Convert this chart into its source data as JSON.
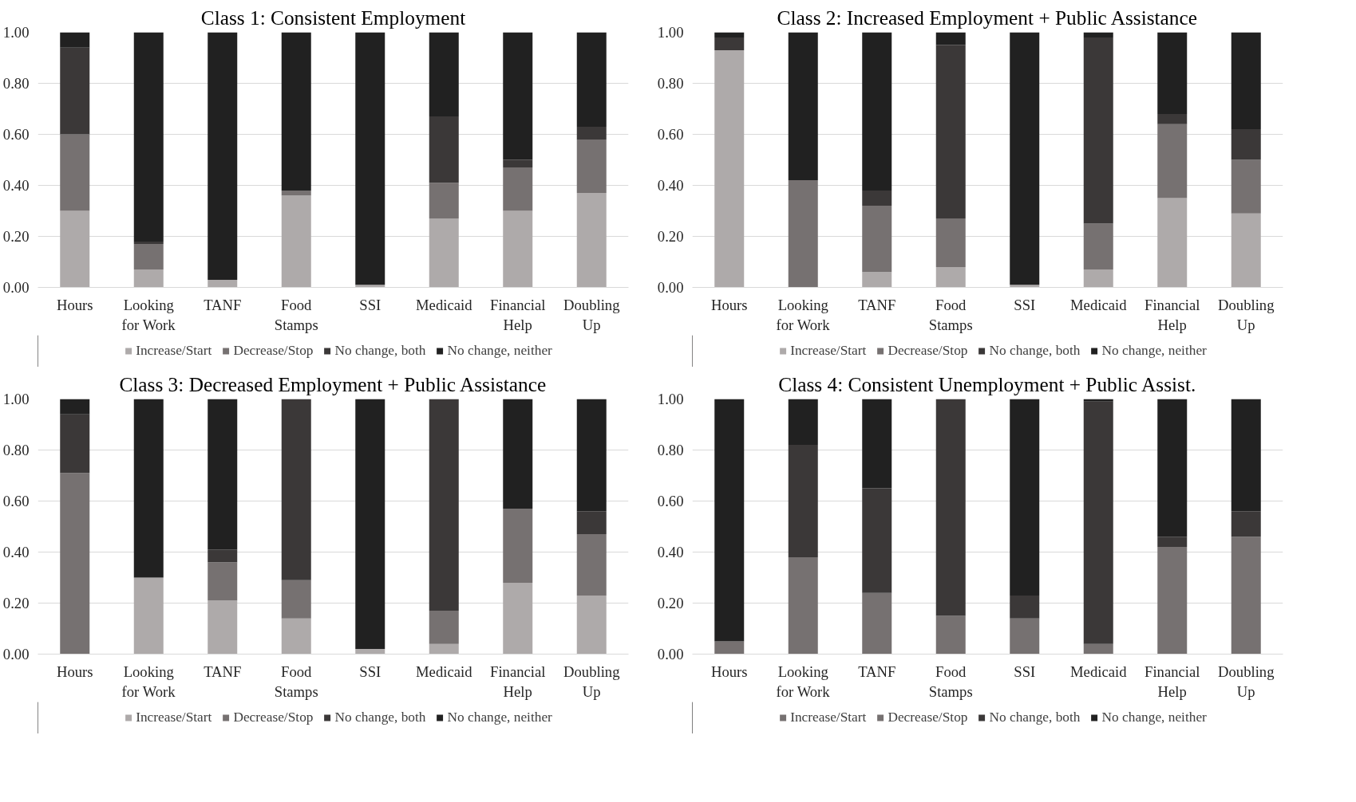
{
  "chart_data": [
    {
      "type": "bar",
      "stacked": true,
      "title": "Class 1: Consistent Employment",
      "categories": [
        "Hours",
        "Looking for Work",
        "TANF",
        "Food Stamps",
        "SSI",
        "Medicaid",
        "Financial Help",
        "Doubling Up"
      ],
      "ylim": [
        0,
        1
      ],
      "yticks": [
        {
          "value": 0,
          "label": "0.00"
        },
        {
          "value": 0.2,
          "label": "0.20"
        },
        {
          "value": 0.4,
          "label": "0.40"
        },
        {
          "value": 0.6,
          "label": "0.60"
        },
        {
          "value": 0.8,
          "label": "0.80"
        },
        {
          "value": 1,
          "label": "1.00"
        }
      ],
      "grid": "y",
      "legend": "bottom",
      "series": [
        {
          "name": "Increase/Start",
          "color": "#aeaaaa",
          "values": [
            0.3,
            0.07,
            0.03,
            0.36,
            0.01,
            0.27,
            0.3,
            0.37
          ]
        },
        {
          "name": "Decrease/Stop",
          "color": "#767171",
          "values": [
            0.3,
            0.1,
            0,
            0.02,
            0,
            0.14,
            0.17,
            0.21
          ]
        },
        {
          "name": "No change, both",
          "color": "#3b3838",
          "values": [
            0.34,
            0.01,
            0,
            0,
            0,
            0.26,
            0.03,
            0.05
          ]
        },
        {
          "name": "No change, neither",
          "color": "#212121",
          "values": [
            0.06,
            0.82,
            0.97,
            0.62,
            0.99,
            0.33,
            0.5,
            0.37
          ]
        }
      ]
    },
    {
      "type": "bar",
      "stacked": true,
      "title": "Class 2: Increased Employment + Public Assistance",
      "categories": [
        "Hours",
        "Looking for Work",
        "TANF",
        "Food Stamps",
        "SSI",
        "Medicaid",
        "Financial Help",
        "Doubling Up"
      ],
      "ylim": [
        0,
        1
      ],
      "yticks": [
        {
          "value": 0,
          "label": "0.00"
        },
        {
          "value": 0.2,
          "label": "0.20"
        },
        {
          "value": 0.4,
          "label": "0.40"
        },
        {
          "value": 0.6,
          "label": "0.60"
        },
        {
          "value": 0.8,
          "label": "0.80"
        },
        {
          "value": 1,
          "label": "1.00"
        }
      ],
      "grid": "y",
      "legend": "bottom",
      "series": [
        {
          "name": "Increase/Start",
          "color": "#aeaaaa",
          "values": [
            0.93,
            0,
            0.06,
            0.08,
            0.01,
            0.07,
            0.35,
            0.29
          ]
        },
        {
          "name": "Decrease/Stop",
          "color": "#767171",
          "values": [
            0,
            0.42,
            0.26,
            0.19,
            0,
            0.18,
            0.29,
            0.21
          ]
        },
        {
          "name": "No change, both",
          "color": "#3b3838",
          "values": [
            0.05,
            0,
            0.06,
            0.68,
            0,
            0.73,
            0.04,
            0.12
          ]
        },
        {
          "name": "No change, neither",
          "color": "#212121",
          "values": [
            0.02,
            0.58,
            0.62,
            0.05,
            0.99,
            0.02,
            0.32,
            0.38
          ]
        }
      ]
    },
    {
      "type": "bar",
      "stacked": true,
      "title": "Class 3: Decreased Employment + Public Assistance",
      "categories": [
        "Hours",
        "Looking for Work",
        "TANF",
        "Food Stamps",
        "SSI",
        "Medicaid",
        "Financial Help",
        "Doubling Up"
      ],
      "ylim": [
        0,
        1
      ],
      "yticks": [
        {
          "value": 0,
          "label": "0.00"
        },
        {
          "value": 0.2,
          "label": "0.20"
        },
        {
          "value": 0.4,
          "label": "0.40"
        },
        {
          "value": 0.6,
          "label": "0.60"
        },
        {
          "value": 0.8,
          "label": "0.80"
        },
        {
          "value": 1,
          "label": "1.00"
        }
      ],
      "grid": "y",
      "legend": "bottom",
      "series": [
        {
          "name": "Increase/Start",
          "color": "#aeaaaa",
          "values": [
            0,
            0.3,
            0.21,
            0.14,
            0.02,
            0.04,
            0.28,
            0.23
          ]
        },
        {
          "name": "Decrease/Stop",
          "color": "#767171",
          "values": [
            0.71,
            0,
            0.15,
            0.15,
            0,
            0.13,
            0.29,
            0.24
          ]
        },
        {
          "name": "No change, both",
          "color": "#3b3838",
          "values": [
            0.23,
            0,
            0.05,
            0.71,
            0,
            0.83,
            0,
            0.09
          ]
        },
        {
          "name": "No change, neither",
          "color": "#212121",
          "values": [
            0.06,
            0.7,
            0.59,
            0,
            0.98,
            0,
            0.43,
            0.44
          ]
        }
      ]
    },
    {
      "type": "bar",
      "stacked": true,
      "title": "Class 4: Consistent Unemployment + Public Assist.",
      "categories": [
        "Hours",
        "Looking for Work",
        "TANF",
        "Food Stamps",
        "SSI",
        "Medicaid",
        "Financial Help",
        "Doubling Up"
      ],
      "ylim": [
        0,
        1
      ],
      "yticks": [
        {
          "value": 0,
          "label": "0.00"
        },
        {
          "value": 0.2,
          "label": "0.20"
        },
        {
          "value": 0.4,
          "label": "0.40"
        },
        {
          "value": 0.6,
          "label": "0.60"
        },
        {
          "value": 0.8,
          "label": "0.80"
        },
        {
          "value": 1,
          "label": "1.00"
        }
      ],
      "grid": "y",
      "legend": "bottom",
      "series": [
        {
          "name": "Increase/Start",
          "color": "#767171",
          "values": [
            0,
            0,
            0,
            0,
            0,
            0,
            0,
            0
          ]
        },
        {
          "name": "Decrease/Stop",
          "color": "#767171",
          "values": [
            0.05,
            0.38,
            0.24,
            0.15,
            0.14,
            0.04,
            0.42,
            0.46
          ]
        },
        {
          "name": "No change, both",
          "color": "#3b3838",
          "values": [
            0,
            0.44,
            0.41,
            0.85,
            0.09,
            0.95,
            0.04,
            0.1
          ]
        },
        {
          "name": "No change, neither",
          "color": "#212121",
          "values": [
            0.95,
            0.18,
            0.35,
            0,
            0.77,
            0.01,
            0.54,
            0.44
          ]
        }
      ]
    }
  ]
}
